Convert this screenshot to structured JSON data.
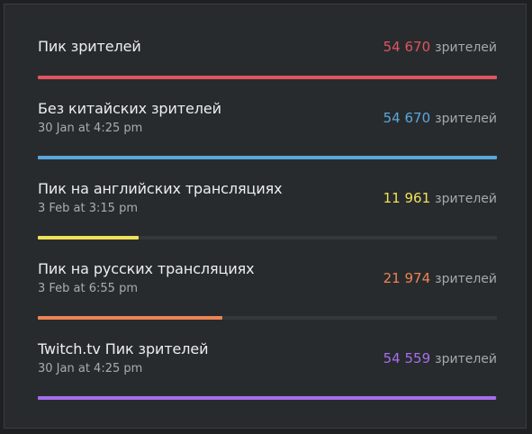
{
  "unit_label": "зрителей",
  "rows": [
    {
      "title": "Пик зрителей",
      "date": "",
      "value": "54 670",
      "fraction": 1.0,
      "color": "#e0555f"
    },
    {
      "title": "Без китайских зрителей",
      "date": "30 Jan at 4:25 pm",
      "value": "54 670",
      "fraction": 1.0,
      "color": "#5aa7dd"
    },
    {
      "title": "Пик на английских трансляциях",
      "date": "3 Feb at 3:15 pm",
      "value": "11 961",
      "fraction": 0.219,
      "color": "#f0e15a"
    },
    {
      "title": "Пик на русских трансляциях",
      "date": "3 Feb at 6:55 pm",
      "value": "21 974",
      "fraction": 0.402,
      "color": "#ec8456"
    },
    {
      "title": "Twitch.tv Пик зрителей",
      "date": "30 Jan at 4:25 pm",
      "value": "54 559",
      "fraction": 0.998,
      "color": "#a66eec"
    }
  ]
}
